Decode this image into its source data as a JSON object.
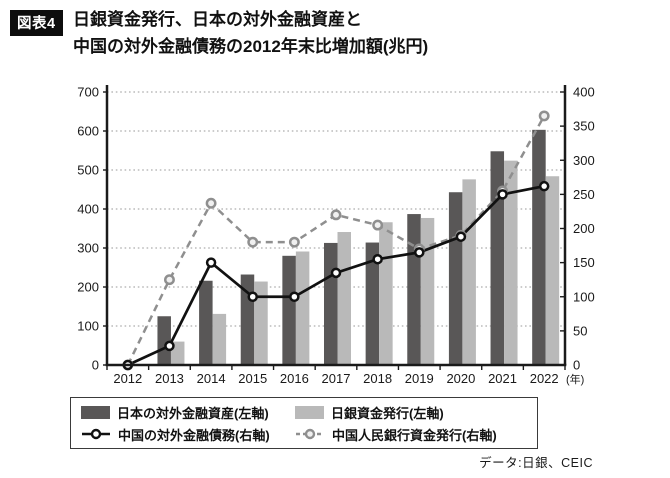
{
  "figure": {
    "badge": "図表4",
    "title_line1": "日銀資金発行、日本の対外金融資産と",
    "title_line2": "中国の対外金融債務の2012年末比増加額(兆円)",
    "source": "データ:日銀、CEIC"
  },
  "colors": {
    "dark_bar": "#595757",
    "light_bar": "#b9b9b9",
    "black_line": "#111111",
    "gray_line": "#8f8f8f",
    "marker_fill": "#ffffff",
    "gray_marker_fill": "#f0f0f0",
    "grid": "#9a9a9a",
    "axis": "#1a1a1a"
  },
  "legend": {
    "items": [
      {
        "label": "日本の対外金融資産(左軸)",
        "swatch": "dark-bar"
      },
      {
        "label": "日銀資金発行(左軸)",
        "swatch": "light-bar"
      },
      {
        "label": "中国の対外金融債務(右軸)",
        "swatch": "black-line"
      },
      {
        "label": "中国人民銀行資金発行(右軸)",
        "swatch": "gray-dashed-line"
      }
    ]
  },
  "chart_data": {
    "type": "bar+line combo",
    "categories": [
      "2012",
      "2013",
      "2014",
      "2015",
      "2016",
      "2017",
      "2018",
      "2019",
      "2020",
      "2021",
      "2022"
    ],
    "x_unit_label": "(年)",
    "left_axis": {
      "min": 0,
      "max": 700,
      "ticks": [
        0,
        100,
        200,
        300,
        400,
        500,
        600,
        700
      ]
    },
    "right_axis": {
      "min": 0,
      "max": 400,
      "ticks": [
        0,
        50,
        100,
        150,
        200,
        250,
        300,
        350,
        400
      ]
    },
    "grid": "horizontal dotted at left-axis ticks",
    "legend_position": "bottom box",
    "bar_series": [
      {
        "name": "日本の対外金融資産(左軸)",
        "axis": "left",
        "color_key": "dark_bar",
        "values": [
          0,
          125,
          216,
          232,
          280,
          313,
          314,
          387,
          443,
          548,
          603
        ]
      },
      {
        "name": "日銀資金発行(左軸)",
        "axis": "left",
        "color_key": "light_bar",
        "values": [
          0,
          60,
          131,
          214,
          291,
          341,
          366,
          377,
          476,
          524,
          484
        ]
      }
    ],
    "line_series": [
      {
        "name": "中国の対外金融債務(右軸)",
        "axis": "right",
        "style": "solid",
        "color_key": "black_line",
        "values": [
          0,
          28,
          150,
          100,
          100,
          135,
          155,
          165,
          188,
          250,
          262
        ]
      },
      {
        "name": "中国人民銀行資金発行(右軸)",
        "axis": "right",
        "style": "dashed",
        "color_key": "gray_line",
        "values": [
          0,
          125,
          237,
          180,
          180,
          220,
          205,
          170,
          190,
          255,
          365
        ]
      }
    ]
  }
}
